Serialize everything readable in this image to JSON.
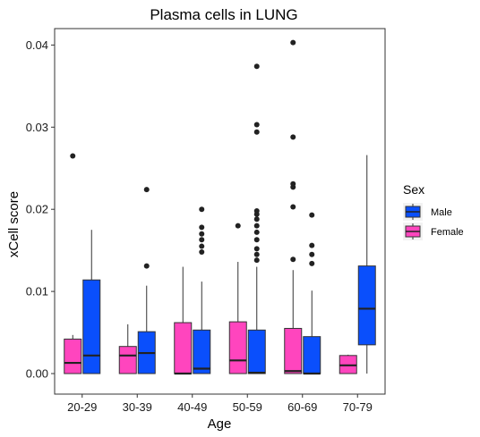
{
  "chart_data": {
    "type": "box",
    "title": "Plasma cells in LUNG",
    "xlabel": "Age",
    "ylabel": "xCell score",
    "ylim": [
      -0.0025,
      0.042
    ],
    "yticks": [
      0.0,
      0.01,
      0.02,
      0.03,
      0.04
    ],
    "ytick_labels": [
      "0.00",
      "0.01",
      "0.02",
      "0.03",
      "0.04"
    ],
    "categories": [
      "20-29",
      "30-39",
      "40-49",
      "50-59",
      "60-69",
      "70-79"
    ],
    "grid": false,
    "legend": {
      "title": "Sex",
      "position": "right",
      "entries": [
        {
          "name": "Male",
          "color": "#0a4ffc"
        },
        {
          "name": "Female",
          "color": "#ff45be"
        }
      ]
    },
    "series": [
      {
        "name": "Female",
        "color": "#ff45be",
        "boxes": [
          {
            "min": 0.0,
            "q1": 0.0,
            "median": 0.0013,
            "q3": 0.0042,
            "max": 0.0047,
            "outliers": [
              0.0265
            ]
          },
          {
            "min": 0.0,
            "q1": 0.0,
            "median": 0.0022,
            "q3": 0.0033,
            "max": 0.006,
            "outliers": []
          },
          {
            "min": 0.0,
            "q1": 0.0,
            "median": 0.0,
            "q3": 0.0062,
            "max": 0.013,
            "outliers": []
          },
          {
            "min": 0.0,
            "q1": 0.0,
            "median": 0.0016,
            "q3": 0.0063,
            "max": 0.0136,
            "outliers": [
              0.018
            ]
          },
          {
            "min": 0.0,
            "q1": 0.0,
            "median": 0.0003,
            "q3": 0.0055,
            "max": 0.0126,
            "outliers": [
              0.0139,
              0.0203,
              0.0227,
              0.0231,
              0.0288,
              0.0403
            ]
          },
          {
            "min": 0.0,
            "q1": 0.0,
            "median": 0.001,
            "q3": 0.0022,
            "max": 0.0023,
            "outliers": []
          }
        ]
      },
      {
        "name": "Male",
        "color": "#0a4ffc",
        "boxes": [
          {
            "min": 0.0,
            "q1": 0.0,
            "median": 0.0022,
            "q3": 0.0114,
            "max": 0.0175,
            "outliers": []
          },
          {
            "min": 0.0,
            "q1": 0.0,
            "median": 0.0025,
            "q3": 0.0051,
            "max": 0.0107,
            "outliers": [
              0.0131,
              0.0224
            ]
          },
          {
            "min": 0.0,
            "q1": 0.0,
            "median": 0.0006,
            "q3": 0.0053,
            "max": 0.0112,
            "outliers": [
              0.0148,
              0.0155,
              0.0163,
              0.017,
              0.0178,
              0.02
            ]
          },
          {
            "min": 0.0,
            "q1": 0.0,
            "median": 0.0001,
            "q3": 0.0053,
            "max": 0.013,
            "outliers": [
              0.0138,
              0.0145,
              0.0152,
              0.0163,
              0.0172,
              0.018,
              0.0188,
              0.0194,
              0.0198,
              0.0294,
              0.0303,
              0.0374
            ]
          },
          {
            "min": 0.0,
            "q1": 0.0,
            "median": 0.0,
            "q3": 0.0045,
            "max": 0.0101,
            "outliers": [
              0.0134,
              0.0145,
              0.0156,
              0.0193
            ]
          },
          {
            "min": 0.0,
            "q1": 0.0035,
            "median": 0.0079,
            "q3": 0.0131,
            "max": 0.0266,
            "outliers": []
          }
        ]
      }
    ]
  }
}
